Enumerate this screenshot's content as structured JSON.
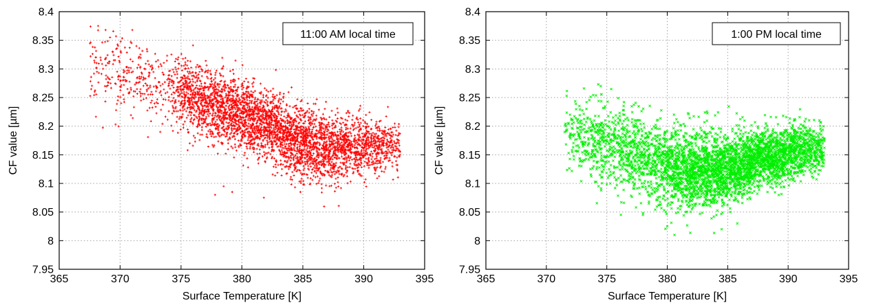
{
  "chart_data": [
    {
      "type": "scatter",
      "title": "",
      "xlabel": "Surface Temperature [K]",
      "ylabel": "CF value [µm]",
      "xlim": [
        365,
        395
      ],
      "ylim": [
        7.95,
        8.4
      ],
      "xticks": [
        365,
        370,
        375,
        380,
        385,
        390,
        395
      ],
      "yticks": [
        7.95,
        8,
        8.05,
        8.1,
        8.15,
        8.2,
        8.25,
        8.3,
        8.35,
        8.4
      ],
      "grid": true,
      "legend_position": "top-right",
      "annotation": "11:00 AM local time",
      "marker": "plus",
      "color": "#ff0000",
      "point_count": 4000,
      "trend": [
        {
          "x": 367.5,
          "y": 8.31,
          "spread": 0.035
        },
        {
          "x": 370,
          "y": 8.29,
          "spread": 0.035
        },
        {
          "x": 373,
          "y": 8.27,
          "spread": 0.035
        },
        {
          "x": 376,
          "y": 8.25,
          "spread": 0.03
        },
        {
          "x": 380,
          "y": 8.22,
          "spread": 0.03
        },
        {
          "x": 383,
          "y": 8.19,
          "spread": 0.03
        },
        {
          "x": 385,
          "y": 8.17,
          "spread": 0.032
        },
        {
          "x": 388,
          "y": 8.16,
          "spread": 0.03
        },
        {
          "x": 390,
          "y": 8.165,
          "spread": 0.025
        },
        {
          "x": 393,
          "y": 8.165,
          "spread": 0.02
        }
      ],
      "density": [
        {
          "x": 367.5,
          "weight": 0.1
        },
        {
          "x": 371,
          "weight": 0.2
        },
        {
          "x": 374,
          "weight": 0.2
        },
        {
          "x": 376,
          "weight": 0.8
        },
        {
          "x": 380,
          "weight": 1.0
        },
        {
          "x": 385,
          "weight": 1.0
        },
        {
          "x": 390,
          "weight": 0.7
        },
        {
          "x": 393,
          "weight": 0.3
        }
      ],
      "outliers": [
        {
          "x": 377.8,
          "y": 8.08
        },
        {
          "x": 378.5,
          "y": 8.095
        },
        {
          "x": 379.2,
          "y": 8.085
        },
        {
          "x": 381.8,
          "y": 8.075
        },
        {
          "x": 384.8,
          "y": 8.085
        },
        {
          "x": 368.2,
          "y": 8.375
        },
        {
          "x": 373.3,
          "y": 8.19
        }
      ]
    },
    {
      "type": "scatter",
      "title": "",
      "xlabel": "Surface Temperature [K]",
      "ylabel": "CF value [µm]",
      "xlim": [
        365,
        395
      ],
      "ylim": [
        7.95,
        8.4
      ],
      "xticks": [
        365,
        370,
        375,
        380,
        385,
        390,
        395
      ],
      "yticks": [
        7.95,
        8,
        8.05,
        8.1,
        8.15,
        8.2,
        8.25,
        8.3,
        8.35,
        8.4
      ],
      "grid": true,
      "legend_position": "top-right",
      "annotation": "1:00 PM local time",
      "marker": "cross",
      "color": "#00ee00",
      "point_count": 4200,
      "trend": [
        {
          "x": 371.5,
          "y": 8.195,
          "spread": 0.03
        },
        {
          "x": 375,
          "y": 8.17,
          "spread": 0.035
        },
        {
          "x": 378,
          "y": 8.145,
          "spread": 0.035
        },
        {
          "x": 381,
          "y": 8.125,
          "spread": 0.035
        },
        {
          "x": 384,
          "y": 8.12,
          "spread": 0.033
        },
        {
          "x": 386,
          "y": 8.13,
          "spread": 0.03
        },
        {
          "x": 388,
          "y": 8.145,
          "spread": 0.025
        },
        {
          "x": 390,
          "y": 8.155,
          "spread": 0.025
        },
        {
          "x": 393,
          "y": 8.16,
          "spread": 0.02
        }
      ],
      "density": [
        {
          "x": 371.5,
          "weight": 0.15
        },
        {
          "x": 374,
          "weight": 0.35
        },
        {
          "x": 378,
          "weight": 0.5
        },
        {
          "x": 382,
          "weight": 0.9
        },
        {
          "x": 385,
          "weight": 1.0
        },
        {
          "x": 388,
          "weight": 0.9
        },
        {
          "x": 390,
          "weight": 0.9
        },
        {
          "x": 393,
          "weight": 0.25
        }
      ],
      "outliers": [
        {
          "x": 374.5,
          "y": 8.27
        },
        {
          "x": 380.6,
          "y": 8.01
        },
        {
          "x": 384.5,
          "y": 8.02
        },
        {
          "x": 385.8,
          "y": 8.03
        },
        {
          "x": 380.0,
          "y": 8.025
        }
      ]
    }
  ]
}
